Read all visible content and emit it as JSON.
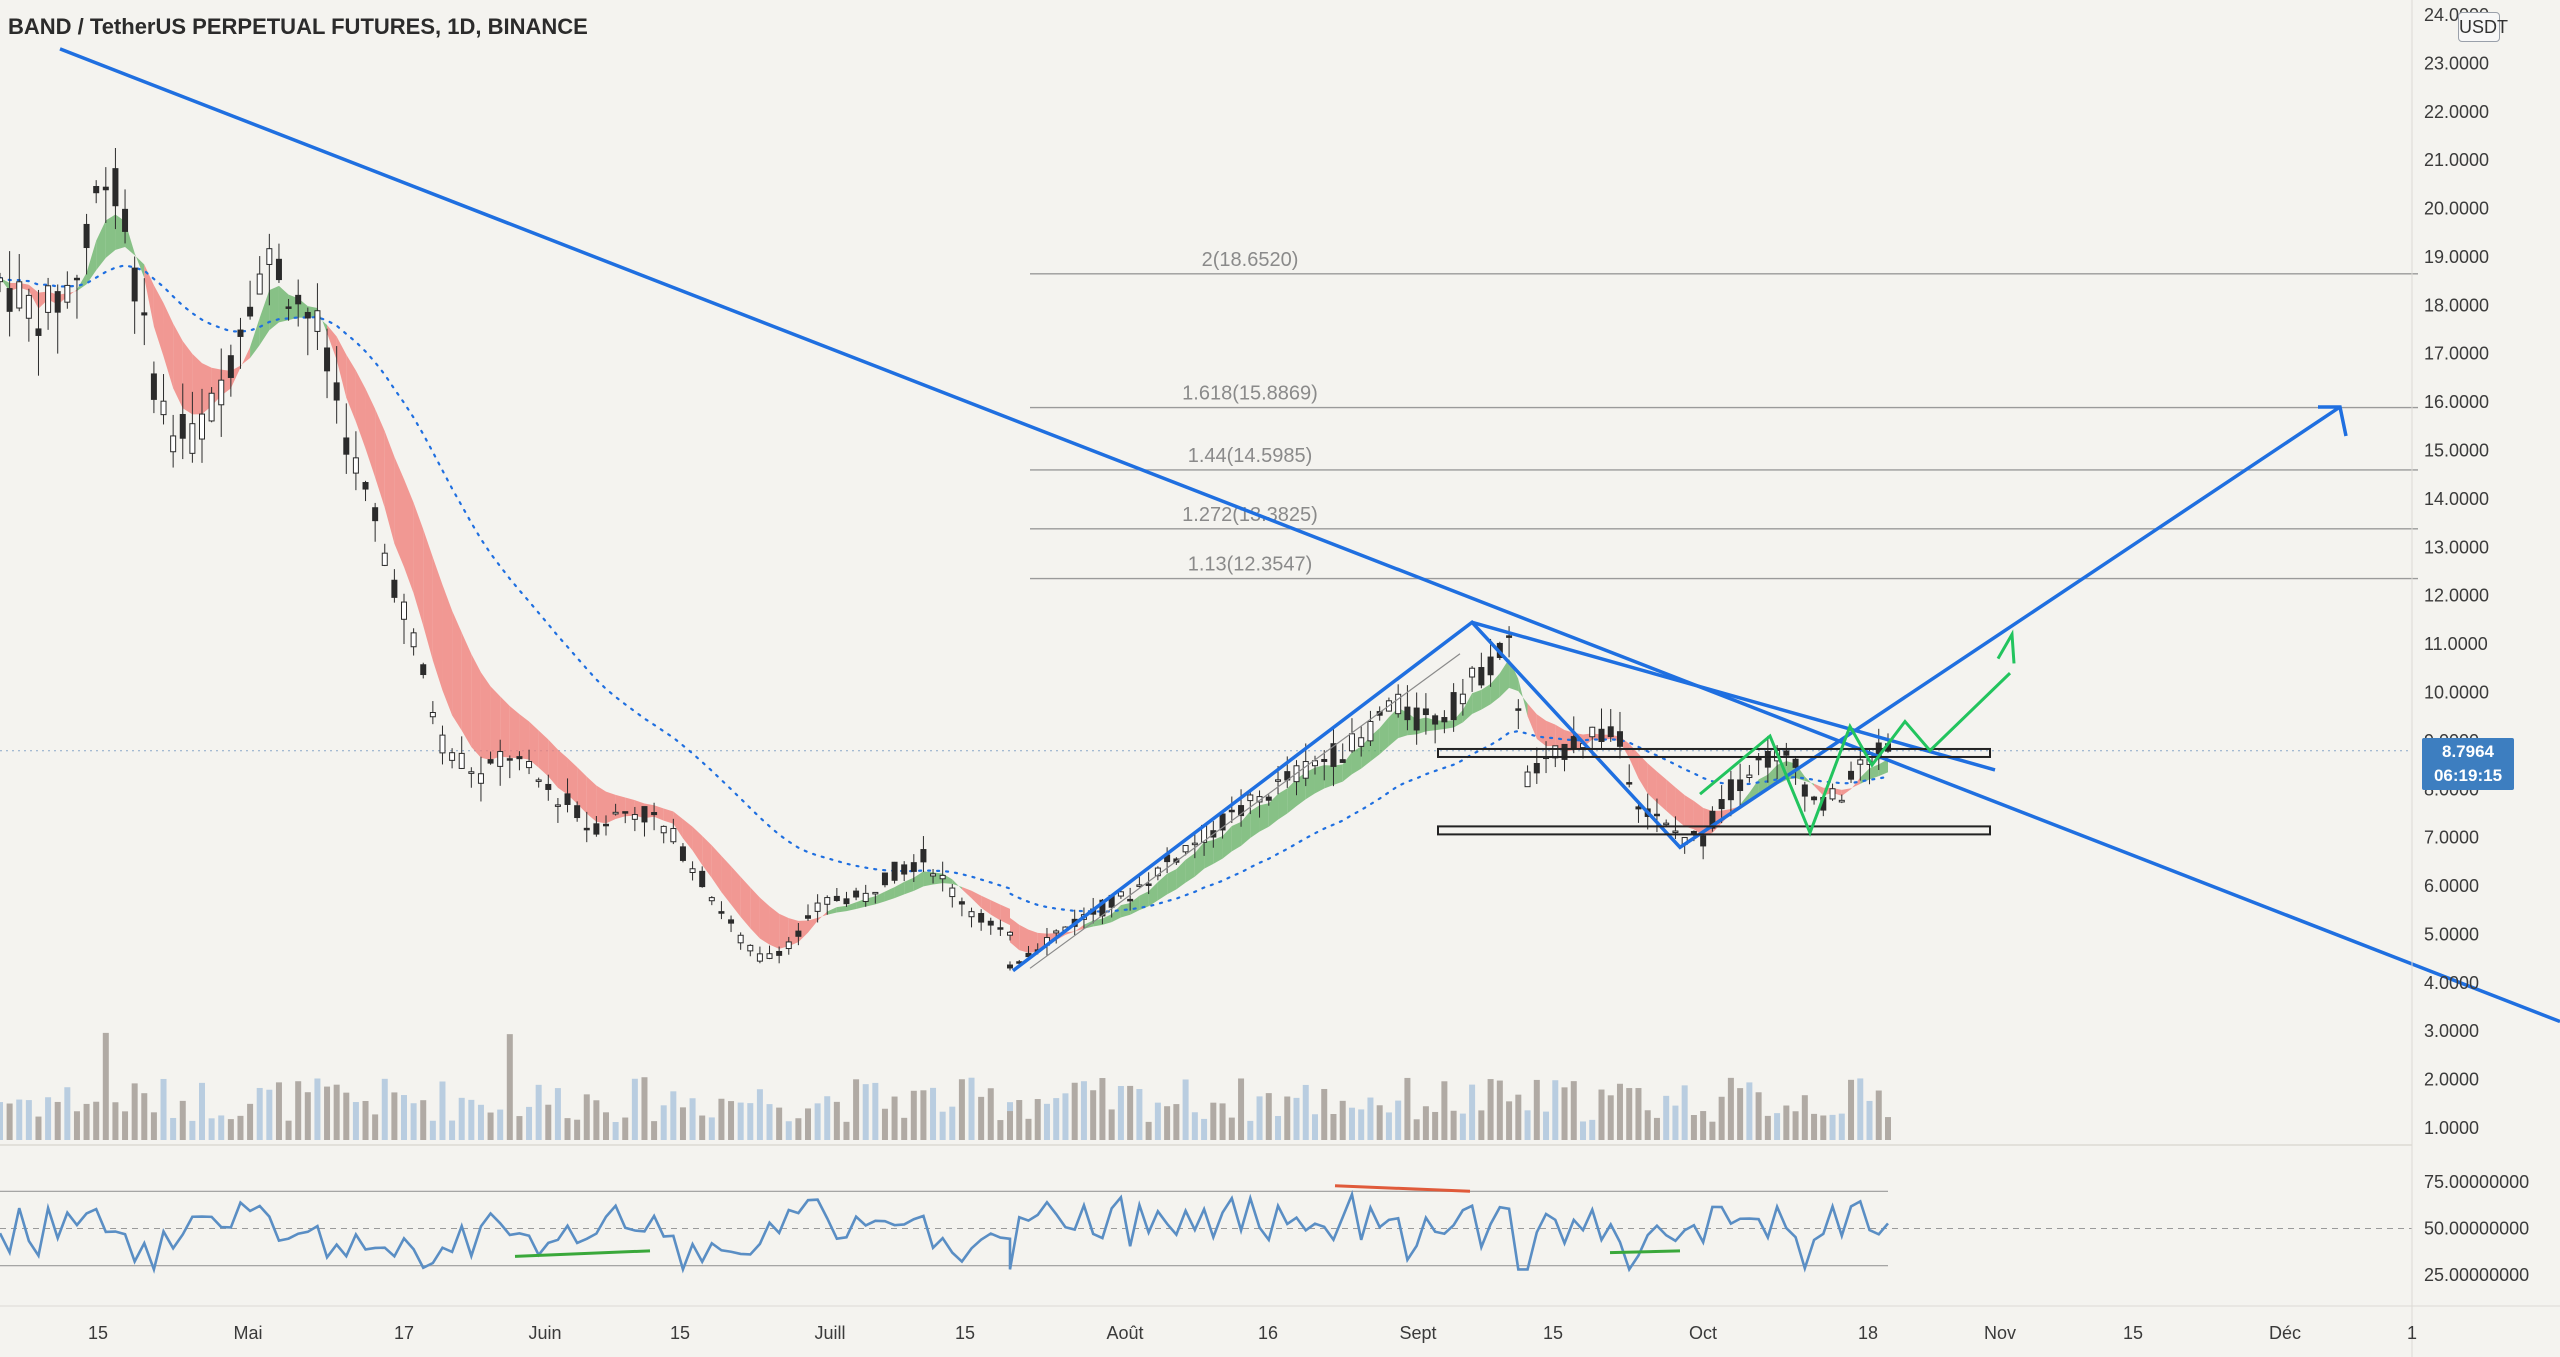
{
  "header": {
    "title": "BAND / TetherUS PERPETUAL FUTURES, 1D, BINANCE",
    "unit": "USDT"
  },
  "price_tag": {
    "price": "8.7964",
    "countdown": "06:19:15"
  },
  "colors": {
    "trendline": "#1f6fe0",
    "projection": "#22c45e",
    "ribbon_up": "#63b063",
    "ribbon_down": "#f07a74",
    "candle_up": "#ffffff",
    "candle_down": "#2b2b2b",
    "volume_up": "#b9cde0",
    "volume_down": "#b0aaa4",
    "rsi_line": "#5a8ec4",
    "divergence_bull": "#3aa83a",
    "divergence_bear": "#e05a3a"
  },
  "chart_data": {
    "type": "candlestick",
    "symbol": "BAND / TetherUS PERPETUAL FUTURES",
    "timeframe": "1D",
    "exchange": "BINANCE",
    "y_axis": {
      "ticks": [
        "24.0000",
        "23.0000",
        "22.0000",
        "21.0000",
        "20.0000",
        "19.0000",
        "18.0000",
        "17.0000",
        "16.0000",
        "15.0000",
        "14.0000",
        "13.0000",
        "12.0000",
        "11.0000",
        "10.0000",
        "9.0000",
        "8.0000",
        "7.0000",
        "6.0000",
        "5.0000",
        "4.0000",
        "3.0000",
        "2.0000",
        "1.0000"
      ],
      "ylim": [
        1,
        24
      ]
    },
    "x_axis": {
      "ticks": [
        "15",
        "Mai",
        "17",
        "Juin",
        "15",
        "Juill",
        "15",
        "Août",
        "16",
        "Sept",
        "15",
        "Oct",
        "18",
        "Nov",
        "15",
        "Déc",
        "1"
      ]
    },
    "fib_levels": [
      {
        "label": "2(18.6520)",
        "value": 18.652
      },
      {
        "label": "1.618(15.8869)",
        "value": 15.8869
      },
      {
        "label": "1.44(14.5985)",
        "value": 14.5985
      },
      {
        "label": "1.272(13.3825)",
        "value": 13.3825
      },
      {
        "label": "1.13(12.3547)",
        "value": 12.3547
      }
    ],
    "last_price": 8.7964,
    "range_box": {
      "upper": 8.75,
      "lower": 7.15
    },
    "rsi": {
      "ticks": [
        "75.00000000",
        "50.00000000",
        "25.00000000"
      ],
      "upper_band": 70,
      "mid": 50,
      "lower_band": 30
    }
  }
}
